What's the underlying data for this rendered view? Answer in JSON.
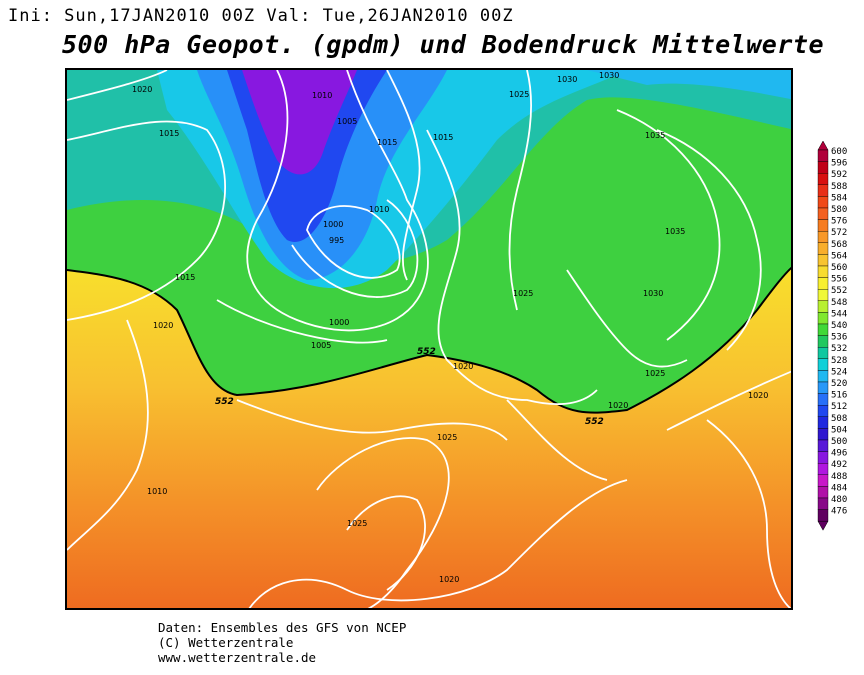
{
  "header": {
    "line": "Ini: Sun,17JAN2010 00Z Val: Tue,26JAN2010 00Z",
    "title": "500 hPa Geopot. (gpdm) und Bodendruck Mittelwerte"
  },
  "footer": {
    "line1": "Daten: Ensembles des GFS von NCEP",
    "line2": "(C) Wetterzentrale",
    "line3": "www.wetterzentrale.de"
  },
  "map": {
    "isobar_labels": [
      "1020",
      "1015",
      "1010",
      "1005",
      "1015",
      "1015",
      "1010",
      "1000",
      "995",
      "1000",
      "1005",
      "1015",
      "1020",
      "1025",
      "1030",
      "1030",
      "1035",
      "1035",
      "1025",
      "1030",
      "1025",
      "1020",
      "1020",
      "1025",
      "1025",
      "1010",
      "1020",
      "1020"
    ],
    "geopot_labels": [
      "552",
      "552",
      "552"
    ]
  },
  "legend": {
    "values": [
      "600",
      "596",
      "592",
      "588",
      "584",
      "580",
      "576",
      "572",
      "568",
      "564",
      "560",
      "556",
      "552",
      "548",
      "544",
      "540",
      "536",
      "532",
      "528",
      "524",
      "520",
      "516",
      "512",
      "508",
      "504",
      "500",
      "496",
      "492",
      "488",
      "484",
      "480",
      "476"
    ],
    "colors": [
      "#b0003a",
      "#c00018",
      "#d81010",
      "#e83018",
      "#f04a18",
      "#f46020",
      "#f67c20",
      "#f89828",
      "#f8ae2c",
      "#f8c430",
      "#f8dc30",
      "#f8f030",
      "#f0f838",
      "#b8f030",
      "#80e830",
      "#40d838",
      "#20c860",
      "#10c8a0",
      "#10d0d8",
      "#20b8f0",
      "#2898f8",
      "#2870f8",
      "#2048f0",
      "#2028e0",
      "#3018d0",
      "#5818d8",
      "#8818e0",
      "#b018e0",
      "#c818c8",
      "#b010a8",
      "#880888",
      "#600060"
    ]
  }
}
